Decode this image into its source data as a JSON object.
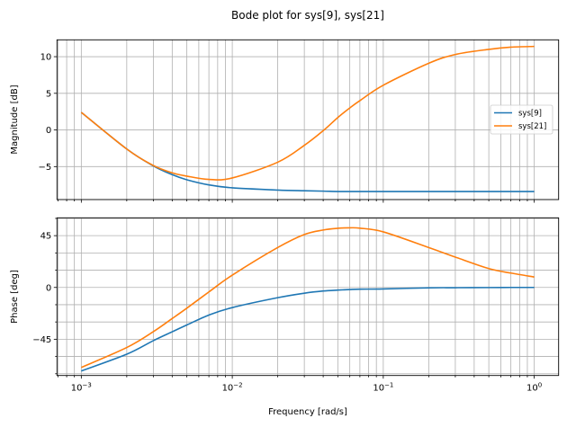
{
  "chart_data": [
    {
      "type": "line",
      "title": "Bode plot for sys[9], sys[21]",
      "xlabel": "",
      "ylabel": "Magnitude [dB]",
      "xscale": "log",
      "xlim": [
        0.00069,
        1.45
      ],
      "ylim": [
        -9.5,
        12.3
      ],
      "yticks": [
        10,
        5,
        0,
        -5
      ],
      "ytick_labels": [
        "10",
        "5",
        "0",
        "−5"
      ],
      "grid": true,
      "legend": "center-right",
      "x": [
        0.001,
        0.002,
        0.003,
        0.004,
        0.005,
        0.007,
        0.01,
        0.02,
        0.03,
        0.04,
        0.05,
        0.06,
        0.07,
        0.1,
        0.2,
        0.3,
        0.5,
        0.7,
        1.0
      ],
      "series": [
        {
          "name": "sys[9]",
          "color": "#1f77b4",
          "values": [
            2.4,
            -2.6,
            -4.9,
            -6.1,
            -6.8,
            -7.5,
            -7.9,
            -8.2,
            -8.3,
            -8.35,
            -8.4,
            -8.4,
            -8.4,
            -8.4,
            -8.4,
            -8.4,
            -8.4,
            -8.4,
            -8.4
          ]
        },
        {
          "name": "sys[21]",
          "color": "#ff7f0e",
          "values": [
            2.4,
            -2.6,
            -4.85,
            -5.85,
            -6.3,
            -6.75,
            -6.55,
            -4.4,
            -2.1,
            -0.1,
            1.7,
            3.0,
            4.0,
            6.1,
            9.1,
            10.3,
            11.0,
            11.3,
            11.4
          ]
        }
      ]
    },
    {
      "type": "line",
      "title": "",
      "xlabel": "Frequency [rad/s]",
      "ylabel": "Phase [deg]",
      "xscale": "log",
      "xlim": [
        0.00069,
        1.45
      ],
      "ylim": [
        -76.5,
        60.5
      ],
      "yticks": [
        45,
        0,
        -45
      ],
      "ytick_labels": [
        "45",
        "0",
        "−45"
      ],
      "yminor_step": 15,
      "xtick_labels": [
        {
          "base": "10",
          "exp": "−3"
        },
        {
          "base": "10",
          "exp": "−2"
        },
        {
          "base": "10",
          "exp": "−1"
        },
        {
          "base": "10",
          "exp": "0"
        }
      ],
      "grid": true,
      "x": [
        0.001,
        0.002,
        0.003,
        0.004,
        0.005,
        0.007,
        0.01,
        0.02,
        0.03,
        0.04,
        0.05,
        0.06,
        0.07,
        0.1,
        0.2,
        0.3,
        0.5,
        0.7,
        1.0
      ],
      "series": [
        {
          "name": "sys[9]",
          "color": "#1f77b4",
          "values": [
            -72.6,
            -58,
            -46.2,
            -38.5,
            -32.6,
            -24,
            -17.5,
            -8.9,
            -5,
            -3.1,
            -2.3,
            -1.8,
            -1.5,
            -1.3,
            -0.3,
            -0.2,
            -0.1,
            0,
            0
          ]
        },
        {
          "name": "sys[21]",
          "color": "#ff7f0e",
          "values": [
            -69.5,
            -52.2,
            -38.4,
            -27,
            -18,
            -3.9,
            10.7,
            34.7,
            46,
            49.9,
            51.4,
            51.8,
            51.5,
            48.3,
            34.7,
            26.4,
            16.4,
            12.5,
            9.1
          ]
        }
      ]
    }
  ]
}
